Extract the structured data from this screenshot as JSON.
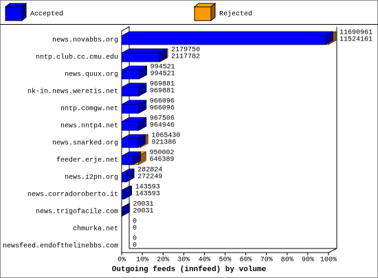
{
  "chart_data": {
    "type": "bar3d",
    "title": "Outgoing feeds (innfeed) by volume",
    "categories": [
      "news.novabbs.org",
      "nntp.club.cc.cmu.edu",
      "news.quux.org",
      "nk-in.news.weretis.net",
      "nntp.comgw.net",
      "news.nntp4.net",
      "news.snarked.org",
      "feeder.erje.net",
      "news.i2pn.org",
      "news.corradoroberto.it",
      "news.trigofacile.com",
      "chmurka.net",
      "newsfeed.endofthelinebbs.com"
    ],
    "series": [
      {
        "name": "Rejected",
        "color": "#ff9900",
        "values": [
          11690961,
          2179750,
          994521,
          969881,
          966096,
          967506,
          1065430,
          950002,
          282824,
          143593,
          20031,
          0,
          0
        ]
      },
      {
        "name": "Accepted",
        "color": "#0000ff",
        "values": [
          11524161,
          2117782,
          994521,
          969881,
          966096,
          964946,
          921386,
          646389,
          272249,
          143593,
          20031,
          0,
          0
        ]
      }
    ],
    "xlim": [
      0,
      11690961
    ],
    "xticks": [
      {
        "value": 0,
        "label": "0%"
      },
      {
        "value": 1169096.1,
        "label": "10%"
      },
      {
        "value": 2338192.2,
        "label": "20%"
      },
      {
        "value": 3507288.3,
        "label": "30%"
      },
      {
        "value": 4676384.4,
        "label": "40%"
      },
      {
        "value": 5845480.5,
        "label": "50%"
      },
      {
        "value": 7014576.6,
        "label": "60%"
      },
      {
        "value": 8183672.7,
        "label": "70%"
      },
      {
        "value": 9352768.8,
        "label": "80%"
      },
      {
        "value": 10521864.9,
        "label": "90%"
      },
      {
        "value": 11690961,
        "label": "100%"
      }
    ]
  }
}
